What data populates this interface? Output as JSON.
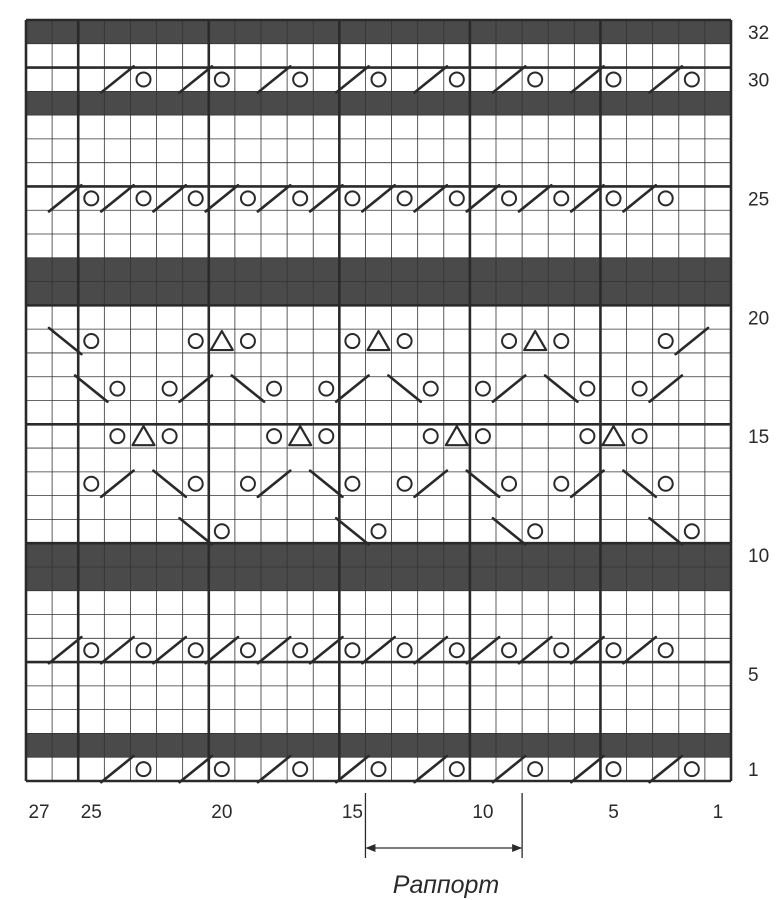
{
  "chart": {
    "columns": 27,
    "rows": 32,
    "dark_rows": [
      2,
      9,
      10,
      21,
      22,
      29,
      32
    ],
    "row_labels": [
      "1",
      "5",
      "10",
      "15",
      "20",
      "25",
      "30",
      "32"
    ],
    "column_labels": [
      "27",
      "25",
      "20",
      "15",
      "10",
      "5",
      "1"
    ],
    "repeat_label": "Раппорт",
    "colors": {
      "line": "#2a2a2a",
      "dark_row": "#4a4a4a",
      "grid": "#333333"
    },
    "symbols": [
      {
        "row": 1,
        "col": 24,
        "type": "slash"
      },
      {
        "row": 1,
        "col": 23,
        "type": "yo"
      },
      {
        "row": 1,
        "col": 21,
        "type": "slash"
      },
      {
        "row": 1,
        "col": 20,
        "type": "yo"
      },
      {
        "row": 1,
        "col": 18,
        "type": "slash"
      },
      {
        "row": 1,
        "col": 17,
        "type": "yo"
      },
      {
        "row": 1,
        "col": 15,
        "type": "slash"
      },
      {
        "row": 1,
        "col": 14,
        "type": "yo"
      },
      {
        "row": 1,
        "col": 12,
        "type": "slash"
      },
      {
        "row": 1,
        "col": 11,
        "type": "yo"
      },
      {
        "row": 1,
        "col": 9,
        "type": "slash"
      },
      {
        "row": 1,
        "col": 8,
        "type": "yo"
      },
      {
        "row": 1,
        "col": 6,
        "type": "slash"
      },
      {
        "row": 1,
        "col": 5,
        "type": "yo"
      },
      {
        "row": 1,
        "col": 3,
        "type": "slash"
      },
      {
        "row": 1,
        "col": 2,
        "type": "yo"
      },
      {
        "row": 6,
        "col": 26,
        "type": "slash"
      },
      {
        "row": 6,
        "col": 25,
        "type": "yo"
      },
      {
        "row": 6,
        "col": 24,
        "type": "slash"
      },
      {
        "row": 6,
        "col": 23,
        "type": "yo"
      },
      {
        "row": 6,
        "col": 22,
        "type": "slash"
      },
      {
        "row": 6,
        "col": 21,
        "type": "yo"
      },
      {
        "row": 6,
        "col": 20,
        "type": "slash"
      },
      {
        "row": 6,
        "col": 19,
        "type": "yo"
      },
      {
        "row": 6,
        "col": 18,
        "type": "slash"
      },
      {
        "row": 6,
        "col": 17,
        "type": "yo"
      },
      {
        "row": 6,
        "col": 16,
        "type": "slash"
      },
      {
        "row": 6,
        "col": 15,
        "type": "yo"
      },
      {
        "row": 6,
        "col": 14,
        "type": "slash"
      },
      {
        "row": 6,
        "col": 13,
        "type": "yo"
      },
      {
        "row": 6,
        "col": 12,
        "type": "slash"
      },
      {
        "row": 6,
        "col": 11,
        "type": "yo"
      },
      {
        "row": 6,
        "col": 10,
        "type": "slash"
      },
      {
        "row": 6,
        "col": 9,
        "type": "yo"
      },
      {
        "row": 6,
        "col": 8,
        "type": "slash"
      },
      {
        "row": 6,
        "col": 7,
        "type": "yo"
      },
      {
        "row": 6,
        "col": 6,
        "type": "slash"
      },
      {
        "row": 6,
        "col": 5,
        "type": "yo"
      },
      {
        "row": 6,
        "col": 4,
        "type": "slash"
      },
      {
        "row": 6,
        "col": 3,
        "type": "yo"
      },
      {
        "row": 11,
        "col": 21,
        "type": "bslash"
      },
      {
        "row": 11,
        "col": 20,
        "type": "yo"
      },
      {
        "row": 11,
        "col": 15,
        "type": "bslash"
      },
      {
        "row": 11,
        "col": 14,
        "type": "yo"
      },
      {
        "row": 11,
        "col": 9,
        "type": "bslash"
      },
      {
        "row": 11,
        "col": 8,
        "type": "yo"
      },
      {
        "row": 11,
        "col": 3,
        "type": "bslash"
      },
      {
        "row": 11,
        "col": 2,
        "type": "yo"
      },
      {
        "row": 13,
        "col": 25,
        "type": "yo"
      },
      {
        "row": 13,
        "col": 24,
        "type": "slash"
      },
      {
        "row": 13,
        "col": 22,
        "type": "bslash"
      },
      {
        "row": 13,
        "col": 21,
        "type": "yo"
      },
      {
        "row": 13,
        "col": 19,
        "type": "yo"
      },
      {
        "row": 13,
        "col": 18,
        "type": "slash"
      },
      {
        "row": 13,
        "col": 16,
        "type": "bslash"
      },
      {
        "row": 13,
        "col": 15,
        "type": "yo"
      },
      {
        "row": 13,
        "col": 13,
        "type": "yo"
      },
      {
        "row": 13,
        "col": 12,
        "type": "slash"
      },
      {
        "row": 13,
        "col": 10,
        "type": "bslash"
      },
      {
        "row": 13,
        "col": 9,
        "type": "yo"
      },
      {
        "row": 13,
        "col": 7,
        "type": "yo"
      },
      {
        "row": 13,
        "col": 6,
        "type": "slash"
      },
      {
        "row": 13,
        "col": 4,
        "type": "bslash"
      },
      {
        "row": 13,
        "col": 3,
        "type": "yo"
      },
      {
        "row": 15,
        "col": 24,
        "type": "yo"
      },
      {
        "row": 15,
        "col": 23,
        "type": "tri"
      },
      {
        "row": 15,
        "col": 22,
        "type": "yo"
      },
      {
        "row": 15,
        "col": 18,
        "type": "yo"
      },
      {
        "row": 15,
        "col": 17,
        "type": "tri"
      },
      {
        "row": 15,
        "col": 16,
        "type": "yo"
      },
      {
        "row": 15,
        "col": 12,
        "type": "yo"
      },
      {
        "row": 15,
        "col": 11,
        "type": "tri"
      },
      {
        "row": 15,
        "col": 10,
        "type": "yo"
      },
      {
        "row": 15,
        "col": 6,
        "type": "yo"
      },
      {
        "row": 15,
        "col": 5,
        "type": "tri"
      },
      {
        "row": 15,
        "col": 4,
        "type": "yo"
      },
      {
        "row": 17,
        "col": 25,
        "type": "bslash"
      },
      {
        "row": 17,
        "col": 24,
        "type": "yo"
      },
      {
        "row": 17,
        "col": 22,
        "type": "yo"
      },
      {
        "row": 17,
        "col": 21,
        "type": "slash"
      },
      {
        "row": 17,
        "col": 19,
        "type": "bslash"
      },
      {
        "row": 17,
        "col": 18,
        "type": "yo"
      },
      {
        "row": 17,
        "col": 16,
        "type": "yo"
      },
      {
        "row": 17,
        "col": 15,
        "type": "slash"
      },
      {
        "row": 17,
        "col": 13,
        "type": "bslash"
      },
      {
        "row": 17,
        "col": 12,
        "type": "yo"
      },
      {
        "row": 17,
        "col": 10,
        "type": "yo"
      },
      {
        "row": 17,
        "col": 9,
        "type": "slash"
      },
      {
        "row": 17,
        "col": 7,
        "type": "bslash"
      },
      {
        "row": 17,
        "col": 6,
        "type": "yo"
      },
      {
        "row": 17,
        "col": 4,
        "type": "yo"
      },
      {
        "row": 17,
        "col": 3,
        "type": "slash"
      },
      {
        "row": 19,
        "col": 26,
        "type": "bslash"
      },
      {
        "row": 19,
        "col": 25,
        "type": "yo"
      },
      {
        "row": 19,
        "col": 21,
        "type": "yo"
      },
      {
        "row": 19,
        "col": 20,
        "type": "tri"
      },
      {
        "row": 19,
        "col": 19,
        "type": "yo"
      },
      {
        "row": 19,
        "col": 15,
        "type": "yo"
      },
      {
        "row": 19,
        "col": 14,
        "type": "tri"
      },
      {
        "row": 19,
        "col": 13,
        "type": "yo"
      },
      {
        "row": 19,
        "col": 9,
        "type": "yo"
      },
      {
        "row": 19,
        "col": 8,
        "type": "tri"
      },
      {
        "row": 19,
        "col": 7,
        "type": "yo"
      },
      {
        "row": 19,
        "col": 3,
        "type": "yo"
      },
      {
        "row": 19,
        "col": 2,
        "type": "slash"
      },
      {
        "row": 25,
        "col": 26,
        "type": "slash"
      },
      {
        "row": 25,
        "col": 25,
        "type": "yo"
      },
      {
        "row": 25,
        "col": 24,
        "type": "slash"
      },
      {
        "row": 25,
        "col": 23,
        "type": "yo"
      },
      {
        "row": 25,
        "col": 22,
        "type": "slash"
      },
      {
        "row": 25,
        "col": 21,
        "type": "yo"
      },
      {
        "row": 25,
        "col": 20,
        "type": "slash"
      },
      {
        "row": 25,
        "col": 19,
        "type": "yo"
      },
      {
        "row": 25,
        "col": 18,
        "type": "slash"
      },
      {
        "row": 25,
        "col": 17,
        "type": "yo"
      },
      {
        "row": 25,
        "col": 16,
        "type": "slash"
      },
      {
        "row": 25,
        "col": 15,
        "type": "yo"
      },
      {
        "row": 25,
        "col": 14,
        "type": "slash"
      },
      {
        "row": 25,
        "col": 13,
        "type": "yo"
      },
      {
        "row": 25,
        "col": 12,
        "type": "slash"
      },
      {
        "row": 25,
        "col": 11,
        "type": "yo"
      },
      {
        "row": 25,
        "col": 10,
        "type": "slash"
      },
      {
        "row": 25,
        "col": 9,
        "type": "yo"
      },
      {
        "row": 25,
        "col": 8,
        "type": "slash"
      },
      {
        "row": 25,
        "col": 7,
        "type": "yo"
      },
      {
        "row": 25,
        "col": 6,
        "type": "slash"
      },
      {
        "row": 25,
        "col": 5,
        "type": "yo"
      },
      {
        "row": 25,
        "col": 4,
        "type": "slash"
      },
      {
        "row": 25,
        "col": 3,
        "type": "yo"
      },
      {
        "row": 30,
        "col": 24,
        "type": "slash"
      },
      {
        "row": 30,
        "col": 23,
        "type": "yo"
      },
      {
        "row": 30,
        "col": 21,
        "type": "slash"
      },
      {
        "row": 30,
        "col": 20,
        "type": "yo"
      },
      {
        "row": 30,
        "col": 18,
        "type": "slash"
      },
      {
        "row": 30,
        "col": 17,
        "type": "yo"
      },
      {
        "row": 30,
        "col": 15,
        "type": "slash"
      },
      {
        "row": 30,
        "col": 14,
        "type": "yo"
      },
      {
        "row": 30,
        "col": 12,
        "type": "slash"
      },
      {
        "row": 30,
        "col": 11,
        "type": "yo"
      },
      {
        "row": 30,
        "col": 9,
        "type": "slash"
      },
      {
        "row": 30,
        "col": 8,
        "type": "yo"
      },
      {
        "row": 30,
        "col": 6,
        "type": "slash"
      },
      {
        "row": 30,
        "col": 5,
        "type": "yo"
      },
      {
        "row": 30,
        "col": 3,
        "type": "slash"
      },
      {
        "row": 30,
        "col": 2,
        "type": "yo"
      }
    ]
  }
}
